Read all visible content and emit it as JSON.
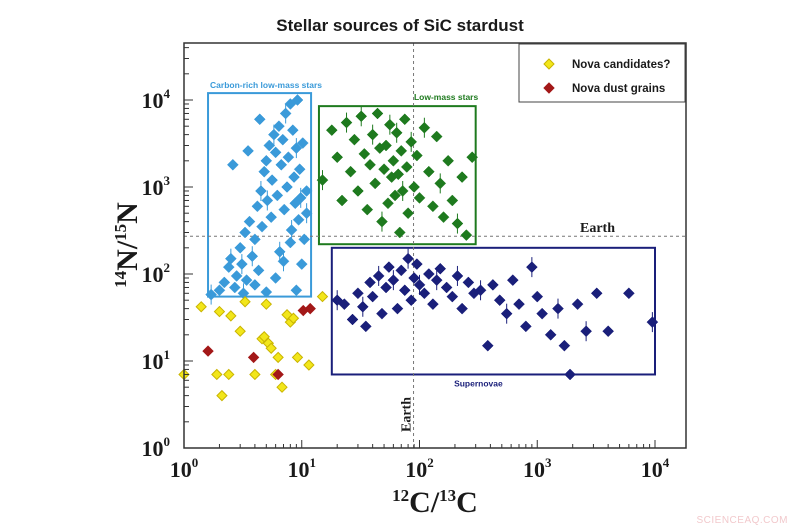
{
  "chart_data": {
    "type": "scatter",
    "title": "Stellar sources of SiC stardust",
    "xlabel": "12C/13C",
    "ylabel": "14N/15N",
    "xscale": "log",
    "yscale": "log",
    "xlim": [
      1,
      20000
    ],
    "ylim": [
      1,
      50000
    ],
    "x_ticks": [
      {
        "base": "10",
        "exp": "0"
      },
      {
        "base": "10",
        "exp": "1"
      },
      {
        "base": "10",
        "exp": "2"
      },
      {
        "base": "10",
        "exp": "3"
      },
      {
        "base": "10",
        "exp": "4"
      }
    ],
    "y_ticks": [
      {
        "base": "10",
        "exp": "0"
      },
      {
        "base": "10",
        "exp": "1"
      },
      {
        "base": "10",
        "exp": "2"
      },
      {
        "base": "10",
        "exp": "3"
      },
      {
        "base": "10",
        "exp": "4"
      }
    ],
    "grid": false,
    "reference_lines": [
      {
        "axis": "x",
        "value": 89,
        "label": "Earth",
        "style": "dashed"
      },
      {
        "axis": "y",
        "value": 272,
        "label": "Earth",
        "style": "dashed"
      }
    ],
    "regions": [
      {
        "name": "Carbon-rich low-mass stars",
        "color": "#3a9ad9",
        "x_range": [
          1.6,
          12
        ],
        "y_range": [
          55,
          12000
        ]
      },
      {
        "name": "Low-mass stars",
        "color": "#1e7a1e",
        "x_range": [
          14,
          300
        ],
        "y_range": [
          220,
          8500
        ]
      },
      {
        "name": "Supernovae",
        "color": "#1a1f7a",
        "x_range": [
          18,
          10000
        ],
        "y_range": [
          7,
          200
        ]
      }
    ],
    "legend": {
      "position": "top-right",
      "entries": [
        {
          "label": "Nova candidates?",
          "color": "#f2e61a",
          "marker": "diamond"
        },
        {
          "label": "Nova dust grains",
          "color": "#a31818",
          "marker": "diamond"
        }
      ]
    },
    "series": [
      {
        "name": "Carbon-rich low-mass stars",
        "color": "#3a9ad9",
        "points": [
          [
            1.7,
            58
          ],
          [
            2.0,
            65
          ],
          [
            2.2,
            80
          ],
          [
            2.4,
            120
          ],
          [
            2.5,
            150
          ],
          [
            2.7,
            70
          ],
          [
            2.8,
            95
          ],
          [
            3.0,
            200
          ],
          [
            3.1,
            130
          ],
          [
            3.3,
            300
          ],
          [
            3.4,
            85
          ],
          [
            3.6,
            400
          ],
          [
            3.8,
            160
          ],
          [
            4.0,
            250
          ],
          [
            4.2,
            600
          ],
          [
            4.3,
            110
          ],
          [
            4.5,
            900
          ],
          [
            4.6,
            350
          ],
          [
            4.8,
            1500
          ],
          [
            5.0,
            2000
          ],
          [
            5.1,
            700
          ],
          [
            5.3,
            3000
          ],
          [
            5.5,
            450
          ],
          [
            5.6,
            1200
          ],
          [
            5.8,
            4000
          ],
          [
            6.0,
            2500
          ],
          [
            6.2,
            800
          ],
          [
            6.4,
            5000
          ],
          [
            6.5,
            180
          ],
          [
            6.7,
            1800
          ],
          [
            6.9,
            3500
          ],
          [
            7.1,
            550
          ],
          [
            7.3,
            7000
          ],
          [
            7.5,
            1000
          ],
          [
            7.7,
            2200
          ],
          [
            8.0,
            9000
          ],
          [
            8.2,
            320
          ],
          [
            8.4,
            4500
          ],
          [
            8.6,
            1300
          ],
          [
            8.8,
            650
          ],
          [
            9.0,
            2800
          ],
          [
            9.2,
            10000
          ],
          [
            9.4,
            420
          ],
          [
            9.6,
            1600
          ],
          [
            9.8,
            750
          ],
          [
            10.2,
            3200
          ],
          [
            10.5,
            250
          ],
          [
            11.0,
            900
          ],
          [
            3.2,
            60
          ],
          [
            4.0,
            75
          ],
          [
            5.0,
            62
          ],
          [
            6.0,
            90
          ],
          [
            7.0,
            140
          ],
          [
            8.0,
            230
          ],
          [
            9.0,
            65
          ],
          [
            10.0,
            130
          ],
          [
            11.0,
            500
          ],
          [
            2.6,
            1800
          ],
          [
            3.5,
            2600
          ],
          [
            4.4,
            6000
          ]
        ]
      },
      {
        "name": "Low-mass stars",
        "color": "#1e7a1e",
        "points": [
          [
            15,
            1200
          ],
          [
            18,
            4500
          ],
          [
            20,
            2200
          ],
          [
            22,
            700
          ],
          [
            24,
            5500
          ],
          [
            26,
            1500
          ],
          [
            28,
            3500
          ],
          [
            30,
            900
          ],
          [
            32,
            6500
          ],
          [
            34,
            2400
          ],
          [
            36,
            550
          ],
          [
            38,
            1800
          ],
          [
            40,
            4000
          ],
          [
            42,
            1100
          ],
          [
            44,
            7000
          ],
          [
            46,
            2800
          ],
          [
            48,
            400
          ],
          [
            50,
            1600
          ],
          [
            52,
            3000
          ],
          [
            54,
            650
          ],
          [
            56,
            5200
          ],
          [
            58,
            1300
          ],
          [
            60,
            2000
          ],
          [
            62,
            800
          ],
          [
            64,
            4200
          ],
          [
            66,
            1400
          ],
          [
            68,
            300
          ],
          [
            70,
            2600
          ],
          [
            72,
            900
          ],
          [
            75,
            6000
          ],
          [
            78,
            1700
          ],
          [
            80,
            500
          ],
          [
            85,
            3300
          ],
          [
            90,
            1000
          ],
          [
            95,
            2300
          ],
          [
            100,
            750
          ],
          [
            110,
            4800
          ],
          [
            120,
            1500
          ],
          [
            130,
            600
          ],
          [
            140,
            3800
          ],
          [
            150,
            1100
          ],
          [
            160,
            450
          ],
          [
            175,
            2000
          ],
          [
            190,
            700
          ],
          [
            210,
            380
          ],
          [
            230,
            1300
          ],
          [
            250,
            280
          ],
          [
            280,
            2200
          ]
        ]
      },
      {
        "name": "Supernovae",
        "color": "#1a1f7a",
        "points": [
          [
            20,
            50
          ],
          [
            23,
            45
          ],
          [
            27,
            30
          ],
          [
            30,
            60
          ],
          [
            33,
            42
          ],
          [
            35,
            25
          ],
          [
            38,
            80
          ],
          [
            40,
            55
          ],
          [
            45,
            95
          ],
          [
            48,
            35
          ],
          [
            52,
            70
          ],
          [
            55,
            120
          ],
          [
            60,
            85
          ],
          [
            65,
            40
          ],
          [
            70,
            110
          ],
          [
            75,
            65
          ],
          [
            80,
            150
          ],
          [
            85,
            50
          ],
          [
            90,
            90
          ],
          [
            95,
            130
          ],
          [
            100,
            75
          ],
          [
            110,
            60
          ],
          [
            120,
            100
          ],
          [
            130,
            45
          ],
          [
            140,
            85
          ],
          [
            150,
            115
          ],
          [
            170,
            70
          ],
          [
            190,
            55
          ],
          [
            210,
            95
          ],
          [
            230,
            40
          ],
          [
            260,
            80
          ],
          [
            290,
            60
          ],
          [
            330,
            65
          ],
          [
            380,
            15
          ],
          [
            420,
            75
          ],
          [
            480,
            50
          ],
          [
            550,
            35
          ],
          [
            620,
            85
          ],
          [
            700,
            45
          ],
          [
            800,
            25
          ],
          [
            900,
            120
          ],
          [
            1000,
            55
          ],
          [
            1100,
            35
          ],
          [
            1300,
            20
          ],
          [
            1500,
            40
          ],
          [
            1700,
            15
          ],
          [
            1900,
            7
          ],
          [
            2200,
            45
          ],
          [
            2600,
            22
          ],
          [
            3200,
            60
          ],
          [
            4000,
            22
          ],
          [
            6000,
            60
          ],
          [
            9500,
            28
          ]
        ]
      },
      {
        "name": "Nova candidates?",
        "color": "#f2e61a",
        "points": [
          [
            1.0,
            7
          ],
          [
            1.4,
            42
          ],
          [
            1.9,
            7
          ],
          [
            2.1,
            4
          ],
          [
            2.4,
            7
          ],
          [
            2.5,
            33
          ],
          [
            3.3,
            48
          ],
          [
            4.0,
            7
          ],
          [
            4.6,
            18
          ],
          [
            4.8,
            19
          ],
          [
            5.2,
            16
          ],
          [
            5.5,
            14
          ],
          [
            6.0,
            7
          ],
          [
            6.3,
            11
          ],
          [
            6.8,
            5
          ],
          [
            7.5,
            34
          ],
          [
            8.0,
            28
          ],
          [
            8.5,
            31
          ],
          [
            9.2,
            11
          ],
          [
            11.5,
            9
          ],
          [
            15.0,
            55
          ],
          [
            3.0,
            22
          ],
          [
            5.0,
            45
          ],
          [
            2.0,
            37
          ]
        ]
      },
      {
        "name": "Nova dust grains",
        "color": "#a31818",
        "points": [
          [
            1.6,
            13
          ],
          [
            3.9,
            11
          ],
          [
            6.3,
            7
          ],
          [
            10.3,
            38
          ],
          [
            11.8,
            40
          ]
        ]
      }
    ]
  },
  "watermark": "SCIENCEAQ.COM"
}
